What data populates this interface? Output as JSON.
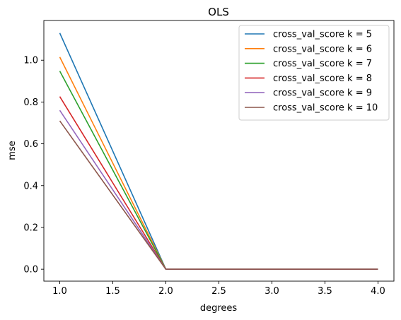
{
  "chart_data": {
    "type": "line",
    "title": "OLS",
    "xlabel": "degrees",
    "ylabel": "mse",
    "x": [
      1.0,
      2.0,
      3.0,
      4.0
    ],
    "xlim": [
      0.85,
      4.15
    ],
    "ylim": [
      -0.057,
      1.19
    ],
    "xticks": [
      1.0,
      1.5,
      2.0,
      2.5,
      3.0,
      3.5,
      4.0
    ],
    "xtick_labels": [
      "1.0",
      "1.5",
      "2.0",
      "2.5",
      "3.0",
      "3.5",
      "4.0"
    ],
    "yticks": [
      0.0,
      0.2,
      0.4,
      0.6,
      0.8,
      1.0
    ],
    "ytick_labels": [
      "0.0",
      "0.2",
      "0.4",
      "0.6",
      "0.8",
      "1.0"
    ],
    "grid": false,
    "legend_position": "top-right",
    "series": [
      {
        "name": "cross_val_score k = 5",
        "color": "#1f77b4",
        "values": [
          1.13,
          0.0,
          0.0,
          0.0
        ]
      },
      {
        "name": "cross_val_score k = 6",
        "color": "#ff7f0e",
        "values": [
          1.015,
          0.0,
          0.0,
          0.0
        ]
      },
      {
        "name": "cross_val_score k = 7",
        "color": "#2ca02c",
        "values": [
          0.948,
          0.0,
          0.0,
          0.0
        ]
      },
      {
        "name": "cross_val_score k = 8",
        "color": "#d62728",
        "values": [
          0.826,
          0.0,
          0.0,
          0.0
        ]
      },
      {
        "name": "cross_val_score k = 9",
        "color": "#9467bd",
        "values": [
          0.76,
          0.0,
          0.0,
          0.0
        ]
      },
      {
        "name": "cross_val_score k = 10",
        "color": "#8c564b",
        "values": [
          0.71,
          0.0,
          0.0,
          0.0
        ]
      }
    ]
  }
}
